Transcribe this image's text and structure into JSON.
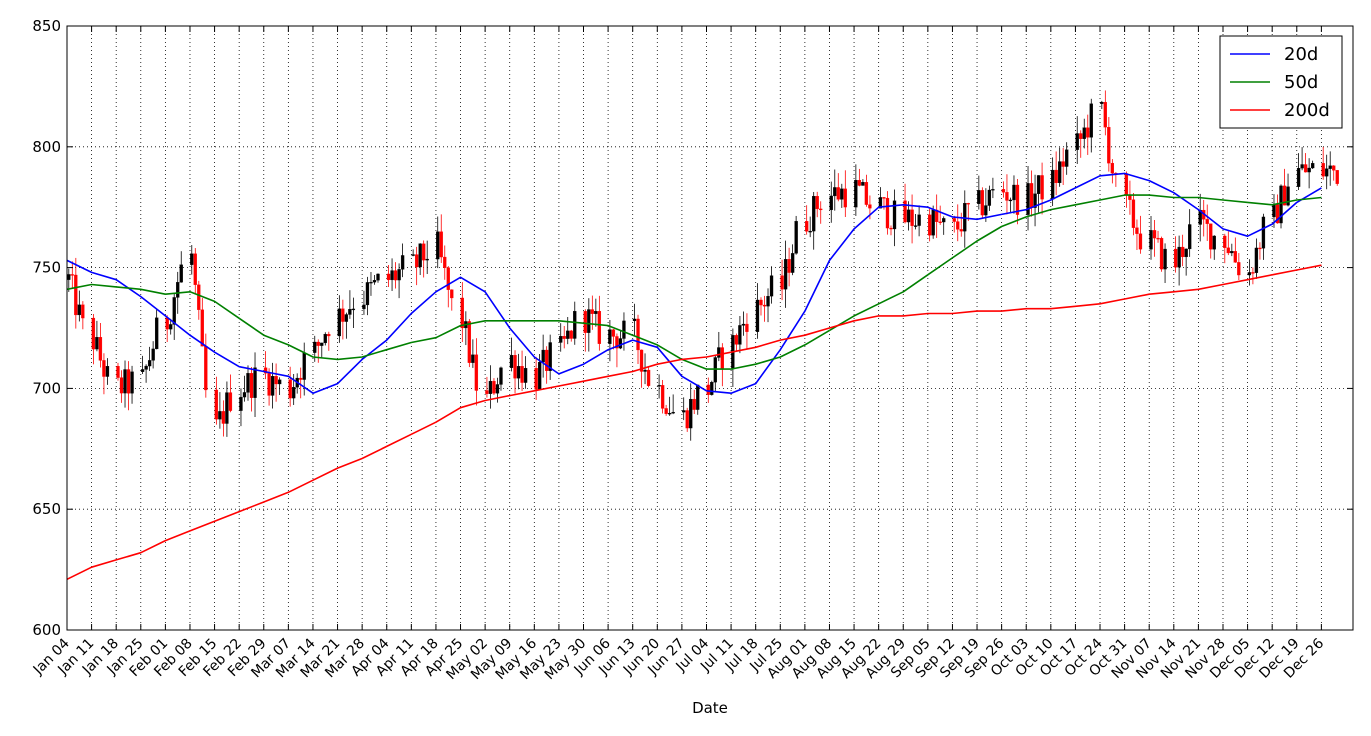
{
  "chart_data": {
    "type": "line",
    "title": "",
    "xlabel": "Date",
    "ylabel": "",
    "ylim": [
      600,
      850
    ],
    "yticks": [
      600,
      650,
      700,
      750,
      800,
      850
    ],
    "grid": true,
    "grid_style": "dotted",
    "legend_position": "top-right",
    "colors": {
      "up_candle": "#000000",
      "down_candle": "#ff0000",
      "ma20": "#0000ff",
      "ma50": "#008000",
      "ma200": "#ff0000",
      "grid": "#000000"
    },
    "x_ticks": [
      "Jan 04",
      "Jan 11",
      "Jan 18",
      "Jan 25",
      "Feb 01",
      "Feb 08",
      "Feb 15",
      "Feb 22",
      "Feb 29",
      "Mar 07",
      "Mar 14",
      "Mar 21",
      "Mar 28",
      "Apr 04",
      "Apr 11",
      "Apr 18",
      "Apr 25",
      "May 02",
      "May 09",
      "May 16",
      "May 23",
      "May 30",
      "Jun 06",
      "Jun 13",
      "Jun 20",
      "Jun 27",
      "Jul 04",
      "Jul 11",
      "Jul 18",
      "Jul 25",
      "Aug 01",
      "Aug 08",
      "Aug 15",
      "Aug 22",
      "Aug 29",
      "Sep 05",
      "Sep 12",
      "Sep 19",
      "Sep 26",
      "Oct 03",
      "Oct 10",
      "Oct 17",
      "Oct 24",
      "Oct 31",
      "Nov 07",
      "Nov 14",
      "Nov 21",
      "Nov 28",
      "Dec 05",
      "Dec 12",
      "Dec 19",
      "Dec 26"
    ],
    "x_span_days": 366,
    "weekly_close": [
      745,
      720,
      700,
      703,
      728,
      755,
      683,
      700,
      705,
      700,
      715,
      730,
      738,
      745,
      750,
      758,
      728,
      695,
      712,
      705,
      715,
      730,
      722,
      722,
      700,
      688,
      700,
      718,
      733,
      742,
      770,
      780,
      782,
      775,
      770,
      770,
      765,
      775,
      782,
      778,
      785,
      800,
      815,
      775,
      760,
      752,
      768,
      762,
      748,
      770,
      790,
      790
    ],
    "series": [
      {
        "name": "20d",
        "values": [
          753,
          748,
          745,
          738,
          730,
          722,
          715,
          709,
          707,
          705,
          698,
          702,
          712,
          720,
          731,
          740,
          746,
          740,
          725,
          713,
          706,
          710,
          716,
          720,
          717,
          705,
          699,
          698,
          702,
          716,
          732,
          753,
          766,
          775,
          776,
          775,
          771,
          770,
          772,
          774,
          778,
          783,
          788,
          789,
          786,
          781,
          774,
          766,
          763,
          768,
          777,
          783
        ]
      },
      {
        "name": "50d",
        "values": [
          741,
          743,
          742,
          741,
          739,
          740,
          736,
          729,
          722,
          718,
          713,
          712,
          713,
          716,
          719,
          721,
          726,
          728,
          728,
          728,
          728,
          727,
          726,
          722,
          718,
          712,
          708,
          708,
          710,
          713,
          718,
          724,
          730,
          735,
          740,
          747,
          754,
          761,
          767,
          771,
          774,
          776,
          778,
          780,
          780,
          779,
          779,
          778,
          777,
          776,
          778,
          779
        ]
      },
      {
        "name": "200d",
        "values": [
          621,
          626,
          629,
          632,
          637,
          641,
          645,
          649,
          653,
          657,
          662,
          667,
          671,
          676,
          681,
          686,
          692,
          695,
          697,
          699,
          701,
          703,
          705,
          707,
          710,
          712,
          713,
          715,
          717,
          720,
          722,
          725,
          728,
          730,
          730,
          731,
          731,
          732,
          732,
          733,
          733,
          734,
          735,
          737,
          739,
          740,
          741,
          743,
          745,
          747,
          749,
          751
        ]
      }
    ]
  }
}
